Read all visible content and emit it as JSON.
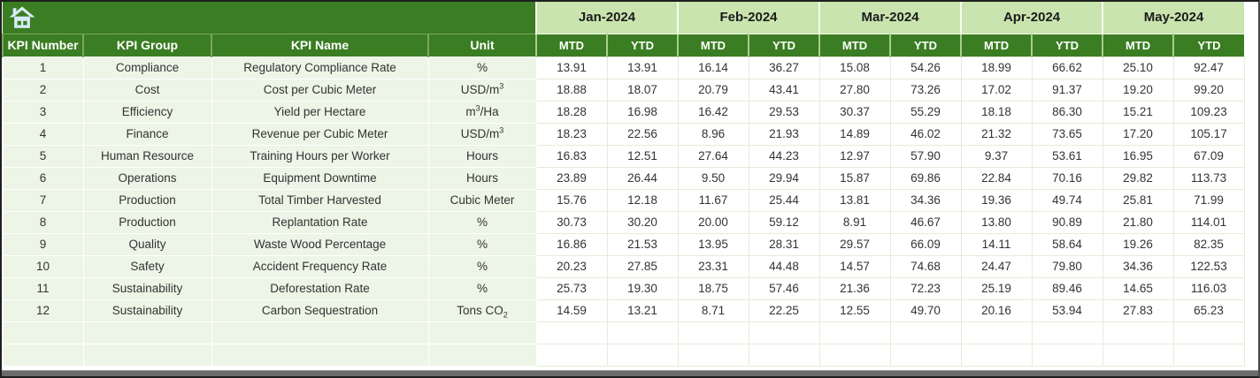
{
  "colors": {
    "dark_green": "#3A7D22",
    "light_green": "#C9E4AE",
    "pale_green": "#EDF5E6",
    "grid_line": "#E3EDDA",
    "body_text": "#333333",
    "icon_blue": "#D7ECF6",
    "separator_light": "#F6FAF1",
    "separator_on_dark": "#7AA763",
    "separator_on_dark2": "#A9CD8D",
    "bottom_bar": "#6B6B6B"
  },
  "header": {
    "info_columns": [
      "KPI Number",
      "KPI Group",
      "KPI Name",
      "Unit"
    ],
    "months": [
      "Jan-2024",
      "Feb-2024",
      "Mar-2024",
      "Apr-2024",
      "May-2024"
    ],
    "sub_columns": [
      "MTD",
      "YTD"
    ],
    "home_icon": "home-icon"
  },
  "rows": [
    {
      "number": "1",
      "group": "Compliance",
      "name": "Regulatory Compliance Rate",
      "unit": "%",
      "values": [
        "13.91",
        "13.91",
        "16.14",
        "36.27",
        "15.08",
        "54.26",
        "18.99",
        "66.62",
        "25.10",
        "92.47"
      ]
    },
    {
      "number": "2",
      "group": "Cost",
      "name": "Cost per Cubic Meter",
      "unit": "USD/m^{3}",
      "values": [
        "18.88",
        "18.07",
        "20.79",
        "43.41",
        "27.80",
        "73.26",
        "17.02",
        "91.37",
        "19.20",
        "99.20"
      ]
    },
    {
      "number": "3",
      "group": "Efficiency",
      "name": "Yield per Hectare",
      "unit": "m^{3}/Ha",
      "values": [
        "18.28",
        "16.98",
        "16.42",
        "29.53",
        "30.37",
        "55.29",
        "18.18",
        "86.30",
        "15.21",
        "109.23"
      ]
    },
    {
      "number": "4",
      "group": "Finance",
      "name": "Revenue per Cubic Meter",
      "unit": "USD/m^{3}",
      "values": [
        "18.23",
        "22.56",
        "8.96",
        "21.93",
        "14.89",
        "46.02",
        "21.32",
        "73.65",
        "17.20",
        "105.17"
      ]
    },
    {
      "number": "5",
      "group": "Human Resource",
      "name": "Training Hours per Worker",
      "unit": "Hours",
      "values": [
        "16.83",
        "12.51",
        "27.64",
        "44.23",
        "12.97",
        "57.90",
        "9.37",
        "53.61",
        "16.95",
        "67.09"
      ]
    },
    {
      "number": "6",
      "group": "Operations",
      "name": "Equipment Downtime",
      "unit": "Hours",
      "values": [
        "23.89",
        "26.44",
        "9.50",
        "29.94",
        "15.87",
        "69.86",
        "22.84",
        "70.16",
        "29.82",
        "113.73"
      ]
    },
    {
      "number": "7",
      "group": "Production",
      "name": "Total Timber Harvested",
      "unit": "Cubic Meter",
      "values": [
        "15.76",
        "12.18",
        "11.67",
        "25.44",
        "13.81",
        "34.36",
        "19.36",
        "49.74",
        "25.81",
        "71.99"
      ]
    },
    {
      "number": "8",
      "group": "Production",
      "name": "Replantation Rate",
      "unit": "%",
      "values": [
        "30.73",
        "30.20",
        "20.00",
        "59.12",
        "8.91",
        "46.67",
        "13.80",
        "90.89",
        "21.80",
        "114.01"
      ]
    },
    {
      "number": "9",
      "group": "Quality",
      "name": "Waste Wood Percentage",
      "unit": "%",
      "values": [
        "16.86",
        "21.53",
        "13.95",
        "28.31",
        "29.57",
        "66.09",
        "14.11",
        "58.64",
        "19.26",
        "82.35"
      ]
    },
    {
      "number": "10",
      "group": "Safety",
      "name": "Accident Frequency Rate",
      "unit": "%",
      "values": [
        "20.23",
        "27.85",
        "23.31",
        "44.48",
        "14.57",
        "74.68",
        "24.47",
        "79.80",
        "34.36",
        "122.53"
      ]
    },
    {
      "number": "11",
      "group": "Sustainability",
      "name": "Deforestation Rate",
      "unit": "%",
      "values": [
        "25.73",
        "19.30",
        "18.75",
        "57.46",
        "21.36",
        "72.23",
        "25.19",
        "89.46",
        "14.65",
        "116.03"
      ]
    },
    {
      "number": "12",
      "group": "Sustainability",
      "name": "Carbon Sequestration",
      "unit": "Tons CO_{2}",
      "values": [
        "14.59",
        "13.21",
        "8.71",
        "22.25",
        "12.55",
        "49.70",
        "20.16",
        "53.94",
        "27.83",
        "65.23"
      ]
    }
  ],
  "empty_row_count": 2
}
